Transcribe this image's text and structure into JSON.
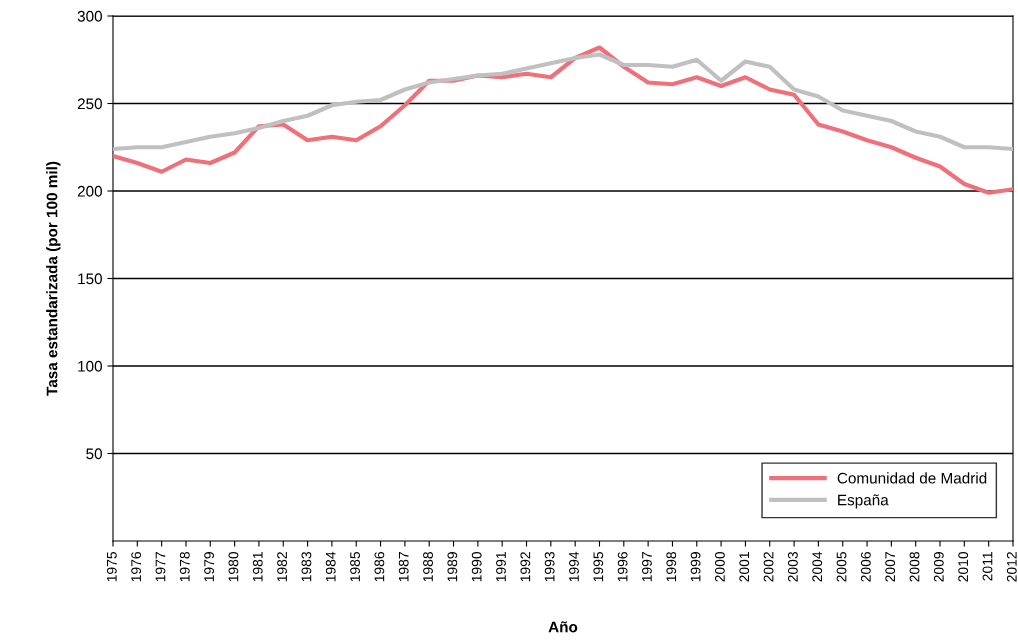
{
  "chart_data": {
    "type": "line",
    "xlabel": "Año",
    "ylabel": "Tasa estandarizada (por 100 mil)",
    "categories": [
      "1975",
      "1976",
      "1977",
      "1978",
      "1979",
      "1980",
      "1981",
      "1982",
      "1983",
      "1984",
      "1985",
      "1986",
      "1987",
      "1988",
      "1989",
      "1990",
      "1991",
      "1992",
      "1993",
      "1994",
      "1995",
      "1996",
      "1997",
      "1998",
      "1999",
      "2000",
      "2001",
      "2002",
      "2003",
      "2004",
      "2005",
      "2006",
      "2007",
      "2008",
      "2009",
      "2010",
      "2011",
      "2012"
    ],
    "series": [
      {
        "name": "Comunidad de Madrid",
        "color": "#f0707a",
        "values": [
          220,
          216,
          211,
          218,
          216,
          222,
          237,
          238,
          229,
          231,
          229,
          237,
          249,
          263,
          263,
          266,
          265,
          267,
          265,
          276,
          282,
          271,
          262,
          261,
          265,
          260,
          265,
          258,
          255,
          238,
          234,
          229,
          225,
          219,
          214,
          204,
          199,
          201
        ]
      },
      {
        "name": "España",
        "color": "#c0c0c0",
        "values": [
          224,
          225,
          225,
          228,
          231,
          233,
          236,
          240,
          243,
          249,
          251,
          252,
          258,
          262,
          264,
          266,
          267,
          270,
          273,
          276,
          278,
          272,
          272,
          271,
          275,
          263,
          274,
          271,
          258,
          254,
          246,
          243,
          240,
          234,
          231,
          225,
          225,
          224
        ]
      }
    ],
    "ylim": [
      0,
      300
    ],
    "yticks": [
      50,
      100,
      150,
      200,
      250,
      300
    ],
    "grid": "y",
    "legend": "bottom right",
    "marker": "none",
    "line_style": "solid"
  }
}
